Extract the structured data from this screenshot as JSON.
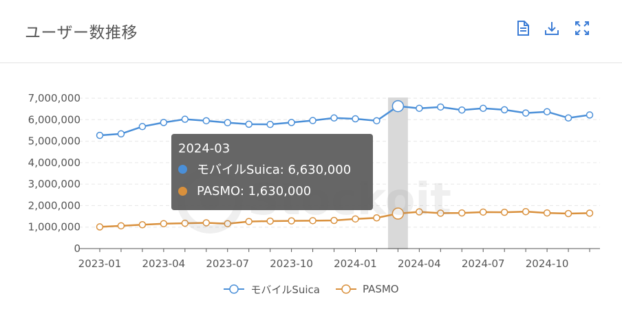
{
  "header": {
    "title": "ユーザー数推移"
  },
  "toolbar": {
    "data_view_icon": "document-icon",
    "download_icon": "download-icon",
    "fullscreen_icon": "expand-icon"
  },
  "watermark": {
    "text": "Stockoit"
  },
  "tooltip": {
    "title": "2024-03",
    "rows": [
      {
        "label": "モバイルSuica: 6,630,000",
        "color": "#4a8fd8"
      },
      {
        "label": "PASMO: 1,630,000",
        "color": "#d9903c"
      }
    ]
  },
  "legend": [
    {
      "label": "モバイルSuica",
      "color": "#4a8fd8"
    },
    {
      "label": "PASMO",
      "color": "#d9903c"
    }
  ],
  "chart_data": {
    "type": "line",
    "x": [
      "2023-01",
      "2023-02",
      "2023-03",
      "2023-04",
      "2023-05",
      "2023-06",
      "2023-07",
      "2023-08",
      "2023-09",
      "2023-10",
      "2023-11",
      "2023-12",
      "2024-01",
      "2024-02",
      "2024-03",
      "2024-04",
      "2024-05",
      "2024-06",
      "2024-07",
      "2024-08",
      "2024-09",
      "2024-10",
      "2024-11",
      "2024-12"
    ],
    "x_tick_labels": [
      "2023-01",
      "2023-04",
      "2023-07",
      "2023-10",
      "2024-01",
      "2024-04",
      "2024-07",
      "2024-10"
    ],
    "y_tick_labels": [
      "0",
      "1,000,000",
      "2,000,000",
      "3,000,000",
      "4,000,000",
      "5,000,000",
      "6,000,000",
      "7,000,000"
    ],
    "ylim": [
      0,
      7000000
    ],
    "grid": true,
    "highlight": "2024-03",
    "series": [
      {
        "name": "モバイルSuica",
        "color": "#4a8fd8",
        "values": [
          5270000,
          5340000,
          5680000,
          5870000,
          6020000,
          5950000,
          5860000,
          5790000,
          5780000,
          5870000,
          5960000,
          6080000,
          6040000,
          5950000,
          6630000,
          6530000,
          6590000,
          6450000,
          6530000,
          6460000,
          6310000,
          6370000,
          6080000,
          6220000
        ]
      },
      {
        "name": "PASMO",
        "color": "#d9903c",
        "values": [
          1010000,
          1060000,
          1110000,
          1160000,
          1180000,
          1200000,
          1160000,
          1260000,
          1280000,
          1290000,
          1300000,
          1310000,
          1380000,
          1430000,
          1630000,
          1710000,
          1650000,
          1660000,
          1700000,
          1690000,
          1720000,
          1660000,
          1630000,
          1650000
        ]
      }
    ]
  }
}
